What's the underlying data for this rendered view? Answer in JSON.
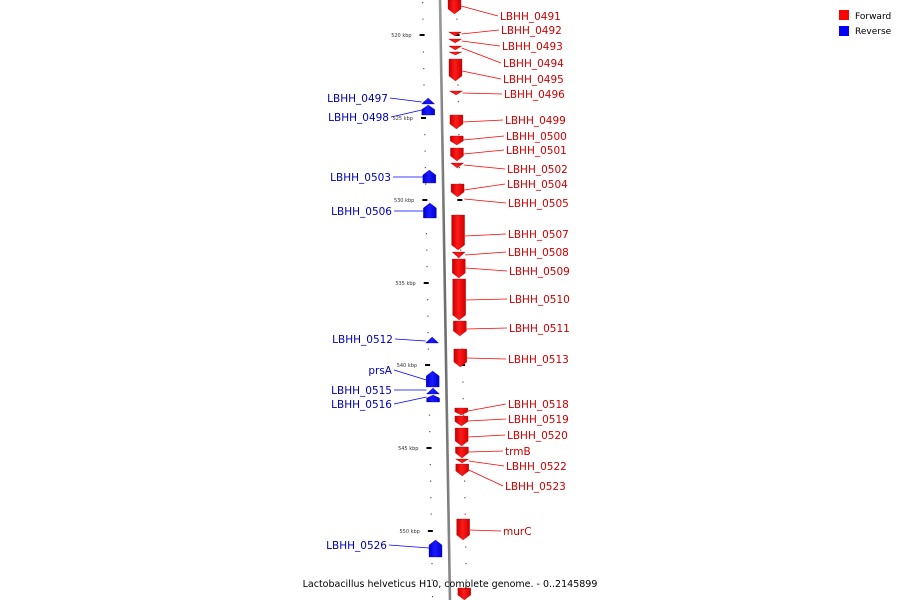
{
  "legend": {
    "forward": {
      "label": "Forward",
      "color": "#ff0000"
    },
    "reverse": {
      "label": "Reverse",
      "color": "#0000ff"
    }
  },
  "caption": "Lactobacillus helveticus H10, complete genome. - 0..2145899",
  "axis": {
    "unit": "kbp",
    "ticks": [
      "520 kbp",
      "525 kbp",
      "530 kbp",
      "535 kbp",
      "540 kbp",
      "545 kbp",
      "550 kbp"
    ]
  },
  "genes": {
    "forward": [
      "LBHH_0491",
      "LBHH_0492",
      "LBHH_0493",
      "LBHH_0494",
      "LBHH_0495",
      "LBHH_0496",
      "LBHH_0499",
      "LBHH_0500",
      "LBHH_0501",
      "LBHH_0502",
      "LBHH_0504",
      "LBHH_0505",
      "LBHH_0507",
      "LBHH_0508",
      "LBHH_0509",
      "LBHH_0510",
      "LBHH_0511",
      "LBHH_0513",
      "LBHH_0518",
      "LBHH_0519",
      "LBHH_0520",
      "trmB",
      "LBHH_0522",
      "LBHH_0523",
      "murC"
    ],
    "reverse": [
      "LBHH_0497",
      "LBHH_0498",
      "LBHH_0503",
      "LBHH_0506",
      "LBHH_0512",
      "prsA",
      "LBHH_0515",
      "LBHH_0516",
      "LBHH_0526"
    ]
  }
}
